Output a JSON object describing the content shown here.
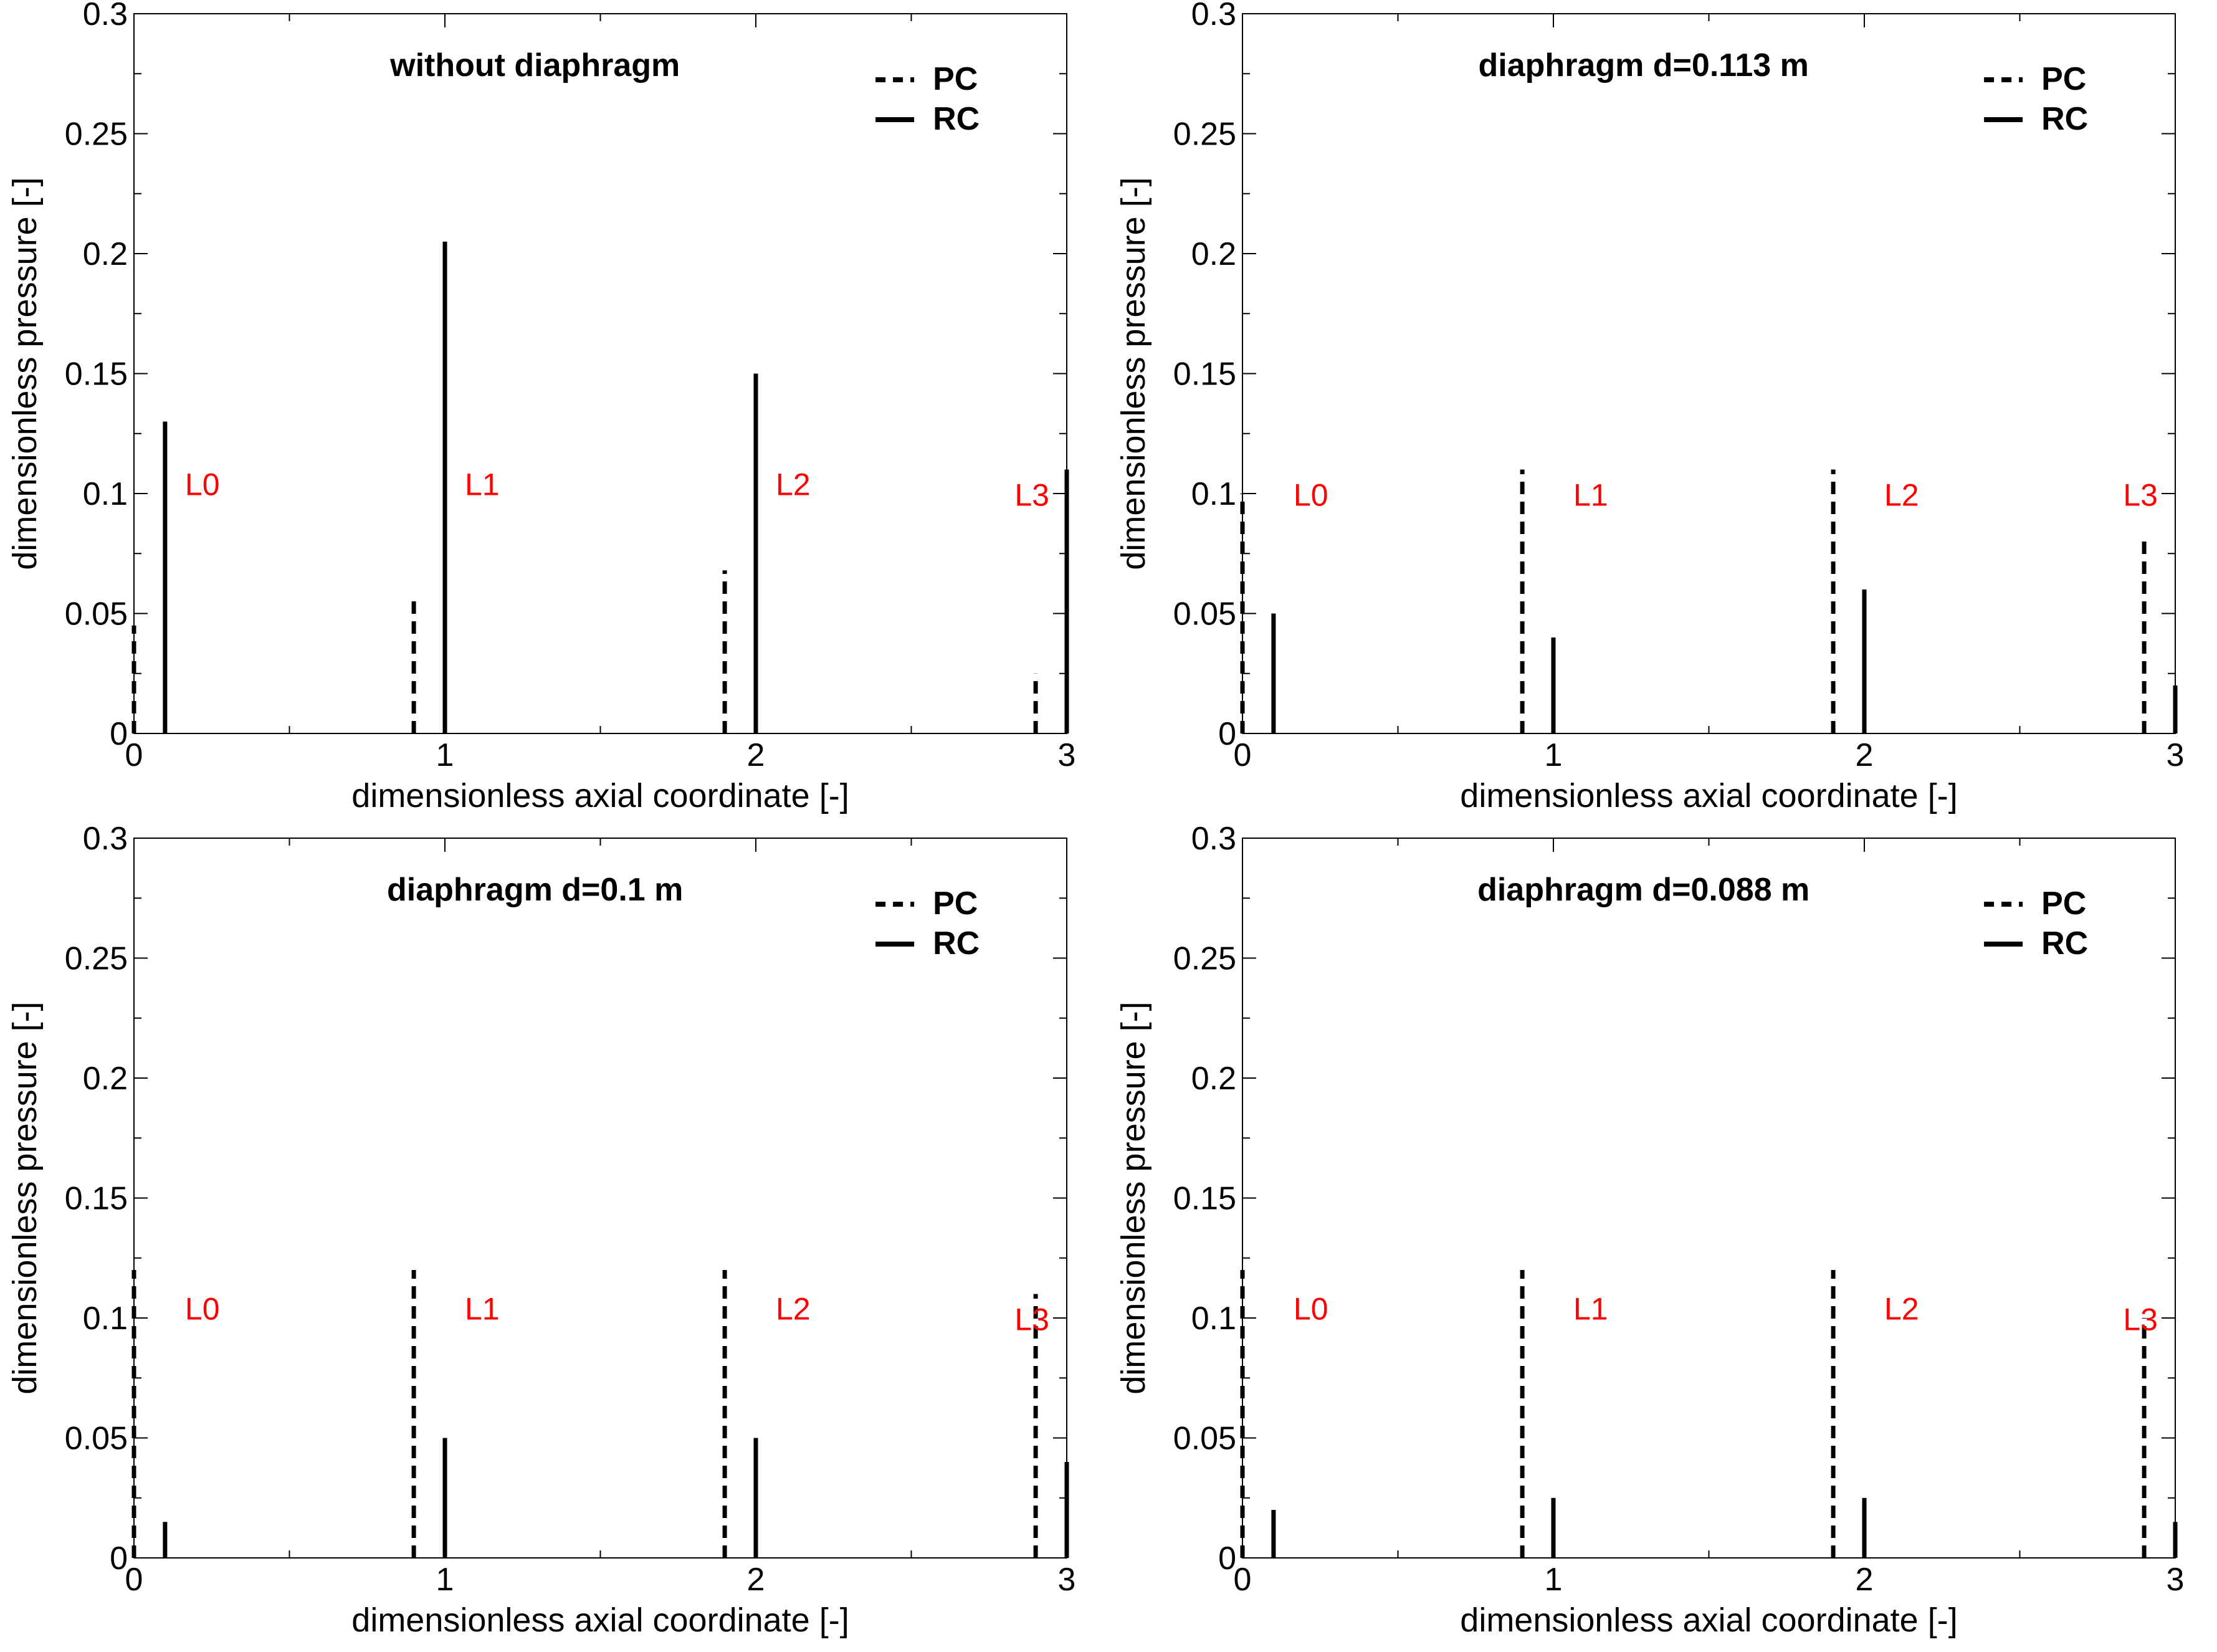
{
  "colors": {
    "foreground": "#000000",
    "annotation": "#ff0000",
    "background": "#ffffff"
  },
  "chart_data": [
    {
      "type": "bar",
      "title": "without diaphragm",
      "xlabel": "dimensionless axial coordinate [-]",
      "ylabel": "dimensionless pressure [-]",
      "xlim": [
        0,
        3
      ],
      "ylim": [
        0,
        0.3
      ],
      "xticks": [
        "0",
        "1",
        "2",
        "3"
      ],
      "yticks": [
        "0",
        "0.05",
        "0.1",
        "0.15",
        "0.2",
        "0.25",
        "0.3"
      ],
      "legend": [
        "PC",
        "RC"
      ],
      "line_labels": [
        "L0",
        "L1",
        "L2",
        "L3"
      ],
      "series": [
        {
          "name": "PC",
          "style": "dashed",
          "x": [
            0.0,
            0.9,
            1.9,
            2.9
          ],
          "values": [
            0.045,
            0.057,
            0.068,
            0.025
          ]
        },
        {
          "name": "RC",
          "style": "solid",
          "x": [
            0.1,
            1.0,
            2.0,
            3.0
          ],
          "values": [
            0.13,
            0.205,
            0.15,
            0.11
          ]
        }
      ]
    },
    {
      "type": "bar",
      "title": "diaphragm d=0.113 m",
      "xlabel": "dimensionless axial coordinate [-]",
      "ylabel": "dimensionless pressure [-]",
      "xlim": [
        0,
        3
      ],
      "ylim": [
        0,
        0.3
      ],
      "xticks": [
        "0",
        "1",
        "2",
        "3"
      ],
      "yticks": [
        "0",
        "0.05",
        "0.1",
        "0.15",
        "0.2",
        "0.25",
        "0.3"
      ],
      "legend": [
        "PC",
        "RC"
      ],
      "line_labels": [
        "L0",
        "L1",
        "L2",
        "L3"
      ],
      "series": [
        {
          "name": "PC",
          "style": "dashed",
          "x": [
            0.0,
            0.9,
            1.9,
            2.9
          ],
          "values": [
            0.1,
            0.11,
            0.11,
            0.08
          ]
        },
        {
          "name": "RC",
          "style": "solid",
          "x": [
            0.1,
            1.0,
            2.0,
            3.0
          ],
          "values": [
            0.05,
            0.04,
            0.06,
            0.02
          ]
        }
      ]
    },
    {
      "type": "bar",
      "title": "diaphragm d=0.1 m",
      "xlabel": "dimensionless axial coordinate [-]",
      "ylabel": "dimensionless pressure [-]",
      "xlim": [
        0,
        3
      ],
      "ylim": [
        0,
        0.3
      ],
      "xticks": [
        "0",
        "1",
        "2",
        "3"
      ],
      "yticks": [
        "0",
        "0.05",
        "0.1",
        "0.15",
        "0.2",
        "0.25",
        "0.3"
      ],
      "legend": [
        "PC",
        "RC"
      ],
      "line_labels": [
        "L0",
        "L1",
        "L2",
        "L3"
      ],
      "series": [
        {
          "name": "PC",
          "style": "dashed",
          "x": [
            0.0,
            0.9,
            1.9,
            2.9
          ],
          "values": [
            0.12,
            0.12,
            0.12,
            0.11
          ]
        },
        {
          "name": "RC",
          "style": "solid",
          "x": [
            0.1,
            1.0,
            2.0,
            3.0
          ],
          "values": [
            0.015,
            0.05,
            0.05,
            0.04
          ]
        }
      ]
    },
    {
      "type": "bar",
      "title": "diaphragm d=0.088 m",
      "xlabel": "dimensionless axial coordinate [-]",
      "ylabel": "dimensionless pressure [-]",
      "xlim": [
        0,
        3
      ],
      "ylim": [
        0,
        0.3
      ],
      "xticks": [
        "0",
        "1",
        "2",
        "3"
      ],
      "yticks": [
        "0",
        "0.05",
        "0.1",
        "0.15",
        "0.2",
        "0.25",
        "0.3"
      ],
      "legend": [
        "PC",
        "RC"
      ],
      "line_labels": [
        "L0",
        "L1",
        "L2",
        "L3"
      ],
      "series": [
        {
          "name": "PC",
          "style": "dashed",
          "x": [
            0.0,
            0.9,
            1.9,
            2.9
          ],
          "values": [
            0.12,
            0.12,
            0.12,
            0.1
          ]
        },
        {
          "name": "RC",
          "style": "solid",
          "x": [
            0.1,
            1.0,
            2.0,
            3.0
          ],
          "values": [
            0.02,
            0.025,
            0.025,
            0.015
          ]
        }
      ]
    }
  ]
}
